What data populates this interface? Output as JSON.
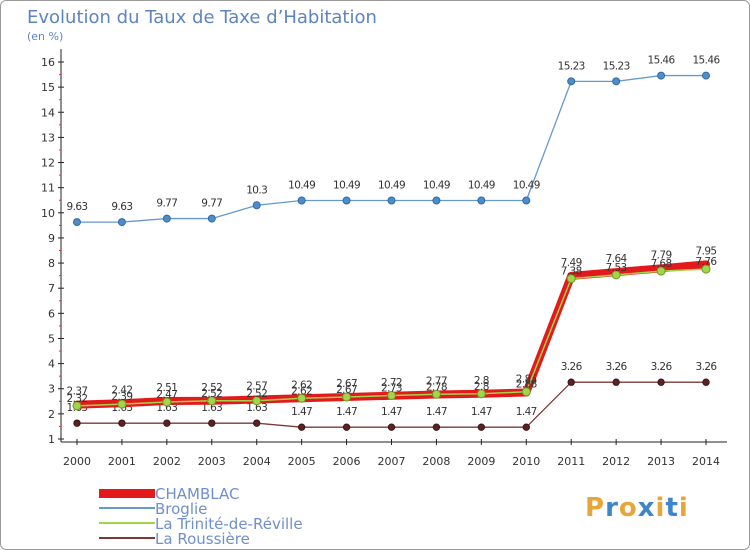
{
  "header": {
    "title": "Evolution du Taux de Taxe d’Habitation",
    "subtitle": "(en %)"
  },
  "logo": {
    "text": "Proxiti",
    "letter_colors": [
      "#e8a63a",
      "#3d86c9",
      "#e8a63a",
      "#3d86c9",
      "#e8a63a",
      "#3d86c9",
      "#e8a63a"
    ]
  },
  "chart_data": {
    "type": "line",
    "x": [
      2000,
      2001,
      2002,
      2003,
      2004,
      2005,
      2006,
      2007,
      2008,
      2009,
      2010,
      2011,
      2012,
      2013,
      2014
    ],
    "ylim": [
      1,
      16
    ],
    "yticks": [
      1,
      2,
      3,
      4,
      5,
      6,
      7,
      8,
      9,
      10,
      11,
      12,
      13,
      14,
      15,
      16
    ],
    "grid": false,
    "legend_position": "bottom-left",
    "series": [
      {
        "name": "CHAMBLAC",
        "color": "#e31a1c",
        "values": [
          2.37,
          2.42,
          2.51,
          2.52,
          2.57,
          2.62,
          2.67,
          2.72,
          2.77,
          2.8,
          2.85,
          7.49,
          7.64,
          7.79,
          7.95
        ]
      },
      {
        "name": "Broglie",
        "color": "#6699cc",
        "values": [
          9.63,
          9.63,
          9.77,
          9.77,
          10.3,
          10.49,
          10.49,
          10.49,
          10.49,
          10.49,
          10.49,
          15.23,
          15.23,
          15.46,
          15.46
        ]
      },
      {
        "name": "La Trinité-de-Réville",
        "color": "#a3d44c",
        "values": [
          2.32,
          2.39,
          2.47,
          2.52,
          2.52,
          2.62,
          2.67,
          2.73,
          2.78,
          2.8,
          2.88,
          7.38,
          7.53,
          7.68,
          7.76
        ]
      },
      {
        "name": "La Roussière",
        "color": "#7b3a3a",
        "values": [
          1.63,
          1.63,
          1.63,
          1.63,
          1.63,
          1.47,
          1.47,
          1.47,
          1.47,
          1.47,
          1.47,
          3.26,
          3.26,
          3.26,
          3.26
        ]
      }
    ]
  }
}
